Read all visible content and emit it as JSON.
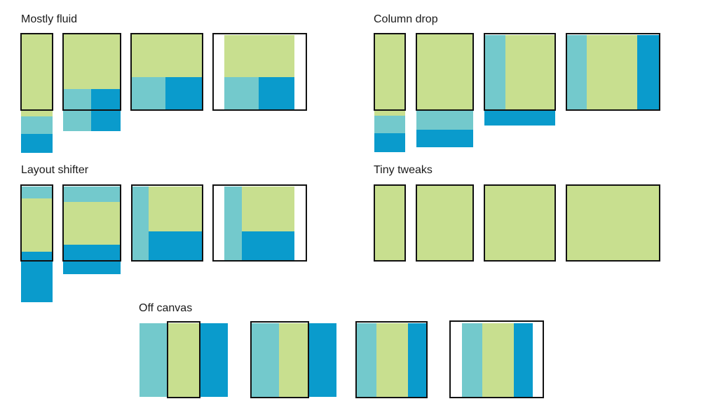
{
  "colors": {
    "main_content": "#c8df8f",
    "secondary_column": "#73c9cc",
    "tertiary_column": "#0a9bcc",
    "frame": "#111111",
    "background": "#ffffff"
  },
  "sections": {
    "mostly_fluid": {
      "title": "Mostly fluid"
    },
    "column_drop": {
      "title": "Column drop"
    },
    "layout_shifter": {
      "title": "Layout shifter"
    },
    "tiny_tweaks": {
      "title": "Tiny tweaks"
    },
    "off_canvas": {
      "title": "Off canvas"
    }
  }
}
